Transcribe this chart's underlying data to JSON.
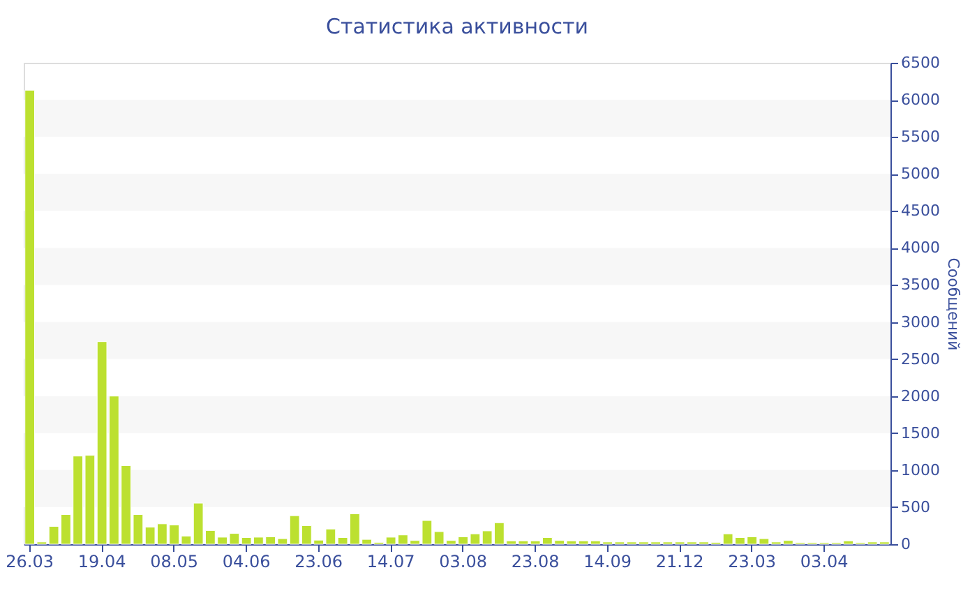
{
  "chart_data": {
    "type": "bar",
    "title": "Статистика активности",
    "ylabel": "Сообщений",
    "categories": [
      "26.03",
      null,
      null,
      null,
      null,
      null,
      "19.04",
      null,
      null,
      null,
      null,
      null,
      "08.05",
      null,
      null,
      null,
      null,
      null,
      "04.06",
      null,
      null,
      null,
      null,
      null,
      "23.06",
      null,
      null,
      null,
      null,
      null,
      "14.07",
      null,
      null,
      null,
      null,
      null,
      "03.08",
      null,
      null,
      null,
      null,
      null,
      "23.08",
      null,
      null,
      null,
      null,
      null,
      "14.09",
      null,
      null,
      null,
      null,
      null,
      "21.12",
      null,
      null,
      null,
      null,
      null,
      "23.03",
      null,
      null,
      null,
      null,
      null,
      "03.04",
      null,
      null,
      null,
      null,
      null
    ],
    "values": [
      6130,
      30,
      240,
      400,
      1190,
      1200,
      2735,
      2000,
      1060,
      400,
      230,
      275,
      260,
      110,
      555,
      185,
      95,
      145,
      90,
      95,
      100,
      75,
      385,
      250,
      55,
      205,
      90,
      410,
      65,
      25,
      95,
      125,
      50,
      320,
      170,
      50,
      100,
      140,
      180,
      290,
      45,
      45,
      45,
      90,
      50,
      45,
      45,
      45,
      30,
      30,
      30,
      30,
      30,
      30,
      30,
      30,
      30,
      25,
      140,
      90,
      100,
      75,
      30,
      50,
      20,
      20,
      20,
      20,
      45,
      20,
      30,
      30
    ],
    "color": "#bce030",
    "ylim": [
      0,
      6500
    ],
    "yticks": [
      0,
      500,
      1000,
      1500,
      2000,
      2500,
      3000,
      3500,
      4000,
      4500,
      5000,
      5500,
      6000,
      6500
    ],
    "bands": [
      {
        "axis": "y",
        "from": 500,
        "to": 1000,
        "color": "#f7f7f7"
      },
      {
        "axis": "y",
        "from": 1500,
        "to": 2000,
        "color": "#f7f7f7"
      },
      {
        "axis": "y",
        "from": 2500,
        "to": 3000,
        "color": "#f7f7f7"
      },
      {
        "axis": "y",
        "from": 3500,
        "to": 4000,
        "color": "#f7f7f7"
      },
      {
        "axis": "y",
        "from": 4500,
        "to": 5000,
        "color": "#f7f7f7"
      },
      {
        "axis": "y",
        "from": 5500,
        "to": 6000,
        "color": "#f7f7f7"
      }
    ],
    "tick_labels": true
  }
}
